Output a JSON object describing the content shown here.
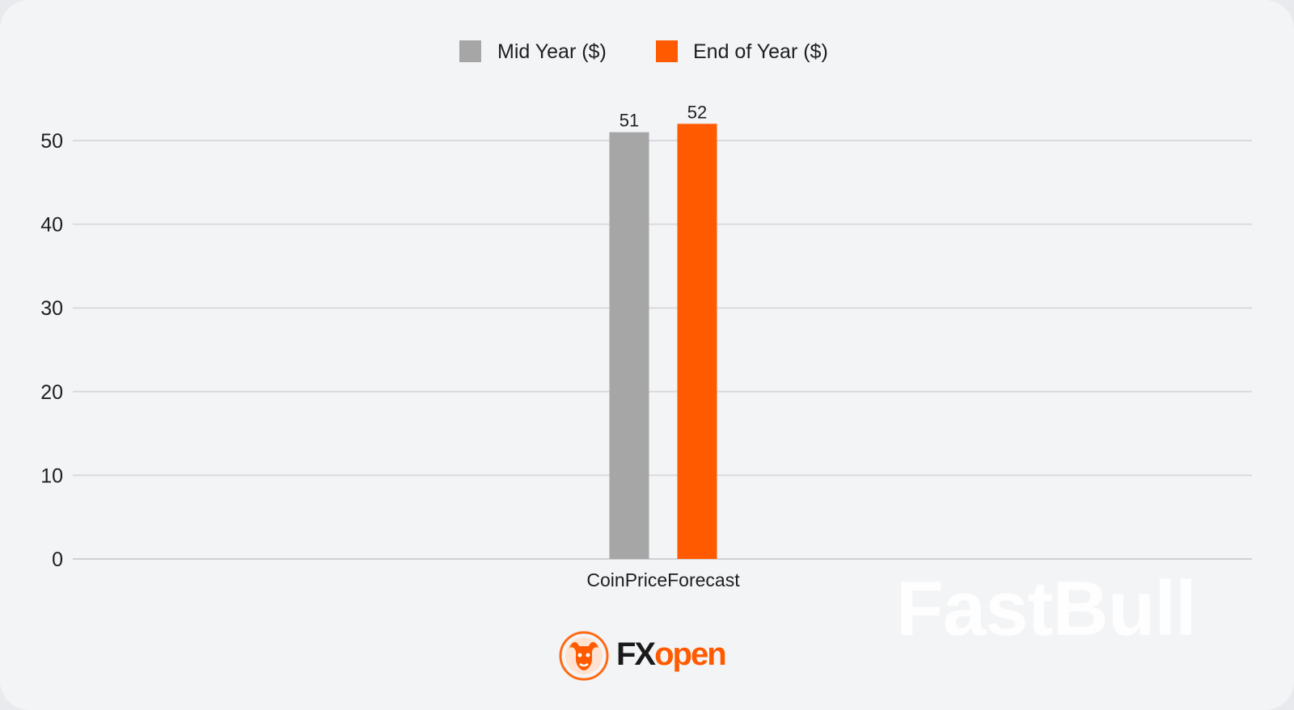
{
  "chart_data": {
    "type": "bar",
    "categories": [
      "CoinPriceForecast"
    ],
    "series": [
      {
        "name": "Mid Year ($)",
        "values": [
          51
        ],
        "color": "#a6a6a6"
      },
      {
        "name": "End of Year ($)",
        "values": [
          52
        ],
        "color": "#ff5a00"
      }
    ],
    "data_labels": [
      "51",
      "52"
    ],
    "ylim": [
      0,
      50
    ],
    "y_ticks": [
      "0",
      "10",
      "20",
      "30",
      "40",
      "50"
    ],
    "grid": true,
    "legend_position": "top-center"
  },
  "branding": {
    "logo_fx": "FX",
    "logo_open": "open",
    "logo_icon": "bull-emblem-icon",
    "watermark": "FastBull"
  }
}
